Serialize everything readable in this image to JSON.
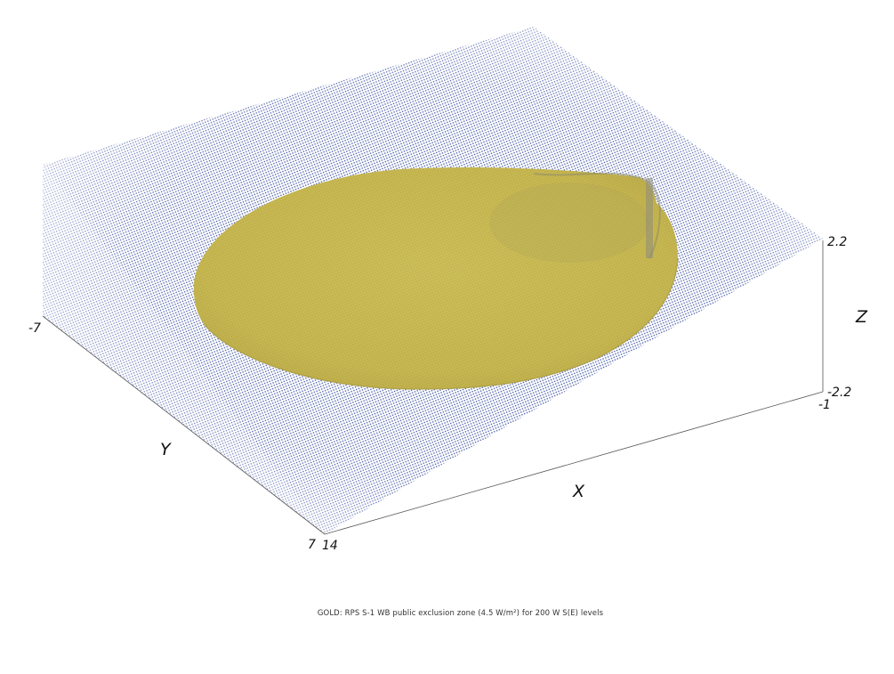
{
  "chart_data": {
    "type": "3d-isosurface",
    "caption": "GOLD: RPS S-1 WB public exclusion zone (4.5 W/m²) for 200 W S(E) levels",
    "axes": {
      "x": {
        "label": "X",
        "ticks": [
          "-1",
          "14"
        ],
        "range": [
          -1,
          14
        ]
      },
      "y": {
        "label": "Y",
        "ticks": [
          "-7",
          "7"
        ],
        "range": [
          -7,
          7
        ]
      },
      "z": {
        "label": "Z",
        "ticks": [
          "2.2",
          "-2.2"
        ],
        "range": [
          -2.2,
          2.2
        ]
      }
    },
    "series": [
      {
        "color": "#c8b845"
      },
      {
        "color": "#3a4f9e"
      }
    ],
    "grid": false
  }
}
